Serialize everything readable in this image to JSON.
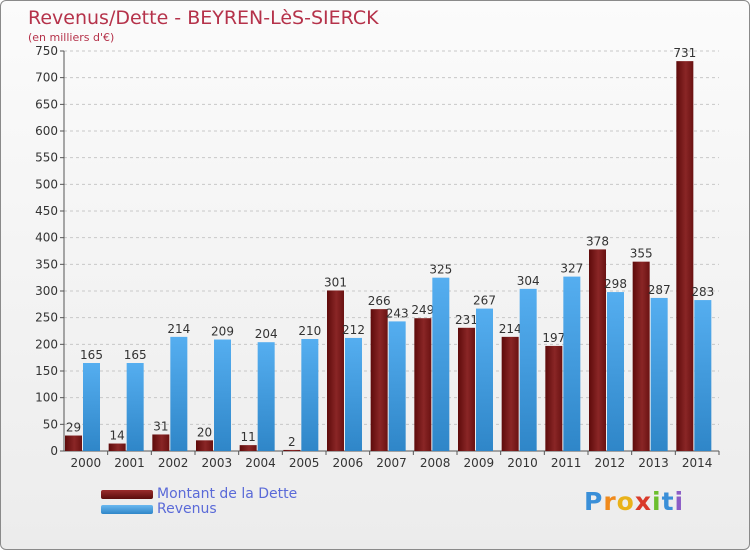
{
  "title": "Revenus/Dette - BEYREN-LèS-SIERCK",
  "subtitle": "(en milliers d'€)",
  "chart_data": {
    "type": "bar",
    "categories": [
      "2000",
      "2001",
      "2002",
      "2003",
      "2004",
      "2005",
      "2006",
      "2007",
      "2008",
      "2009",
      "2010",
      "2011",
      "2012",
      "2013",
      "2014"
    ],
    "series": [
      {
        "name": "Montant de la Dette",
        "color": "#7a1616",
        "values": [
          29,
          14,
          31,
          20,
          11,
          2,
          301,
          266,
          249,
          231,
          214,
          197,
          378,
          355,
          731
        ]
      },
      {
        "name": "Revenus",
        "color": "#3f9be0",
        "values": [
          165,
          165,
          214,
          209,
          204,
          210,
          212,
          243,
          325,
          267,
          304,
          327,
          298,
          287,
          283
        ]
      }
    ],
    "ylim": [
      0,
      750
    ],
    "yticks": [
      0,
      50,
      100,
      150,
      200,
      250,
      300,
      350,
      400,
      450,
      500,
      550,
      600,
      650,
      700,
      750
    ],
    "grid": true,
    "legend_position": "bottom-left"
  },
  "legend": {
    "debt_label": "Montant de la Dette",
    "revenue_label": "Revenus"
  },
  "logo": {
    "letters": [
      "P",
      "r",
      "o",
      "x",
      "i",
      "t",
      "i"
    ],
    "colors": [
      "#3a8fd8",
      "#f08a1c",
      "#e9b21a",
      "#d93a2a",
      "#6cbf2e",
      "#3a8fd8",
      "#8b5cc6"
    ]
  }
}
